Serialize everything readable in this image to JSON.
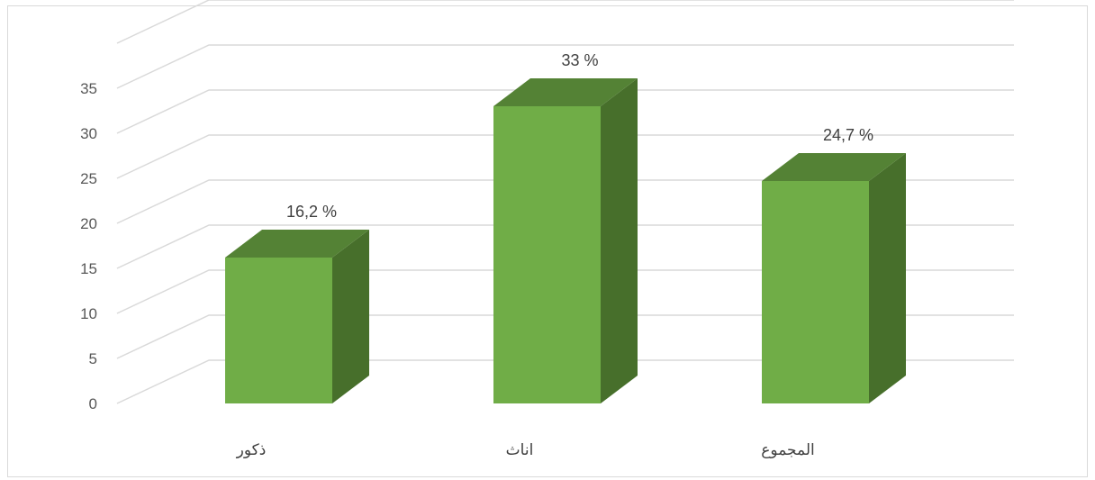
{
  "chart_data": {
    "type": "bar",
    "style": "3d-column",
    "categories": [
      "ذكور",
      "اناث",
      "المجموع"
    ],
    "values": [
      16.2,
      33,
      24.7
    ],
    "data_labels": [
      "16,2 %",
      "33 %",
      "24,7 %"
    ],
    "y_ticks": [
      "0",
      "5",
      "10",
      "15",
      "20",
      "25",
      "30",
      "35"
    ],
    "ylim": [
      0,
      35
    ],
    "grid": true,
    "legend": "none",
    "colors": {
      "front": "#70ad47",
      "side": "#476f2b",
      "top": "#548235",
      "grid": "#d9d9d9"
    }
  }
}
